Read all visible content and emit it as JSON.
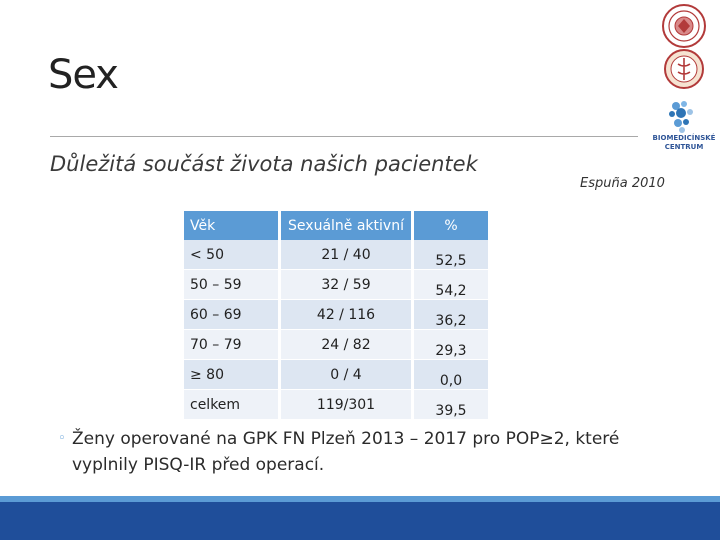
{
  "slide": {
    "title": "Sex",
    "subtitle": "Důležitá součást života našich pacientek",
    "citation": "Espuña 2010",
    "bullet": "Ženy operované na GPK FN Plzeň 2013 – 2017 pro POP≥2, které vyplnily PISQ-IR před operací."
  },
  "logos": {
    "bmc_line1": "BIOMEDICÍNSKÉ",
    "bmc_line2": "CENTRUM"
  },
  "table": {
    "headers": [
      "Věk",
      "Sexuálně aktivní",
      "%"
    ],
    "rows": [
      [
        "< 50",
        "21 / 40",
        "52,5"
      ],
      [
        "50 – 59",
        "32 / 59",
        "54,2"
      ],
      [
        "60 – 69",
        "42 / 116",
        "36,2"
      ],
      [
        "70 – 79",
        "24 / 82",
        "29,3"
      ],
      [
        "≥ 80",
        "0 / 4",
        "0,0"
      ],
      [
        "celkem",
        "119/301",
        "39,5"
      ]
    ]
  },
  "colors": {
    "header_blue": "#5b9bd5",
    "footer_dark": "#1f4e9a",
    "seal_red": "#b23a3a"
  }
}
